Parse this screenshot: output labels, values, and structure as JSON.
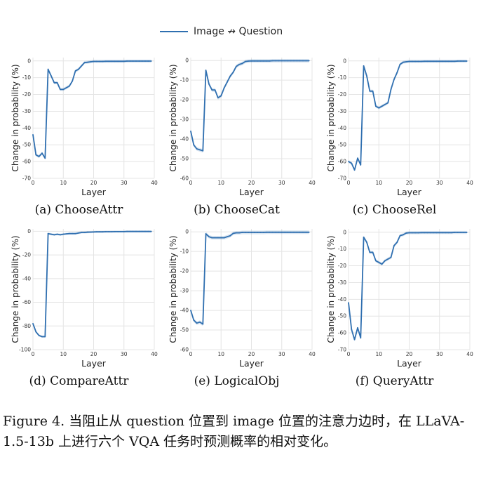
{
  "legend": {
    "label": "Image ↛ Question",
    "color": "#2f6fb0"
  },
  "figure_caption": "Figure 4. 当阻止从 question 位置到 image 位置的注意力边时，在 LLaVA-1.5-13b 上进行六个 VQA 任务时预测概率的相对变化。",
  "chart_data": [
    {
      "type": "line",
      "caption": "(a) ChooseAttr",
      "xlabel": "Layer",
      "ylabel": "Change in probability (%)",
      "xlim": [
        0,
        40
      ],
      "ylim": [
        -70,
        2
      ],
      "xticks": [
        0,
        10,
        20,
        30,
        40
      ],
      "yticks": [
        0,
        -10,
        -20,
        -30,
        -40,
        -50,
        -60,
        -70
      ],
      "grid": true,
      "series": [
        {
          "name": "Image ↛ Question",
          "x": [
            0,
            1,
            2,
            3,
            4,
            5,
            6,
            7,
            8,
            9,
            10,
            11,
            12,
            13,
            14,
            15,
            16,
            17,
            18,
            19,
            20,
            21,
            22,
            23,
            24,
            25,
            26,
            27,
            28,
            29,
            30,
            31,
            32,
            33,
            34,
            35,
            36,
            37,
            38,
            39
          ],
          "values": [
            -44,
            -56,
            -57,
            -55,
            -58,
            -5,
            -9,
            -13,
            -13,
            -17,
            -17,
            -16,
            -15,
            -12,
            -6,
            -5,
            -3,
            -1,
            -0.8,
            -0.5,
            -0.3,
            -0.3,
            -0.3,
            -0.3,
            -0.2,
            -0.2,
            -0.2,
            -0.2,
            -0.2,
            -0.2,
            -0.2,
            -0.1,
            -0.1,
            -0.1,
            -0.1,
            -0.1,
            -0.1,
            -0.1,
            -0.1,
            -0.1
          ]
        }
      ]
    },
    {
      "type": "line",
      "caption": "(b) ChooseCat",
      "xlabel": "Layer",
      "ylabel": "Change in probability (%)",
      "xlim": [
        0,
        40
      ],
      "ylim": [
        -60,
        1.5
      ],
      "xticks": [
        0,
        10,
        20,
        30,
        40
      ],
      "yticks": [
        0,
        -10,
        -20,
        -30,
        -40,
        -50,
        -60
      ],
      "grid": true,
      "series": [
        {
          "name": "Image ↛ Question",
          "x": [
            0,
            1,
            2,
            3,
            4,
            5,
            6,
            7,
            8,
            9,
            10,
            11,
            12,
            13,
            14,
            15,
            16,
            17,
            18,
            19,
            20,
            21,
            22,
            23,
            24,
            25,
            26,
            27,
            28,
            29,
            30,
            31,
            32,
            33,
            34,
            35,
            36,
            37,
            38,
            39
          ],
          "values": [
            -36,
            -43,
            -45,
            -45.5,
            -46,
            -5,
            -12,
            -15,
            -15,
            -19,
            -18,
            -14,
            -11,
            -8,
            -6,
            -3,
            -2,
            -1.5,
            -0.5,
            -0.3,
            -0.2,
            -0.2,
            -0.2,
            -0.2,
            -0.2,
            -0.2,
            -0.2,
            -0.1,
            -0.1,
            -0.1,
            -0.1,
            -0.1,
            -0.1,
            -0.1,
            -0.1,
            -0.1,
            -0.1,
            -0.1,
            -0.1,
            -0.1
          ]
        }
      ]
    },
    {
      "type": "line",
      "caption": "(c) ChooseRel",
      "xlabel": "Layer",
      "ylabel": "Change in probability (%)",
      "xlim": [
        0,
        40
      ],
      "ylim": [
        -70,
        2
      ],
      "xticks": [
        0,
        10,
        20,
        30,
        40
      ],
      "yticks": [
        0,
        -10,
        -20,
        -30,
        -40,
        -50,
        -60,
        -70
      ],
      "grid": true,
      "series": [
        {
          "name": "Image ↛ Question",
          "x": [
            0,
            1,
            2,
            3,
            4,
            5,
            6,
            7,
            8,
            9,
            10,
            11,
            12,
            13,
            14,
            15,
            16,
            17,
            18,
            19,
            20,
            21,
            22,
            23,
            24,
            25,
            26,
            27,
            28,
            29,
            30,
            31,
            32,
            33,
            34,
            35,
            36,
            37,
            38,
            39
          ],
          "values": [
            -60,
            -61,
            -65,
            -58,
            -62,
            -3,
            -9,
            -18,
            -18,
            -27,
            -28,
            -27,
            -26,
            -25,
            -17,
            -11,
            -7,
            -2,
            -0.8,
            -0.5,
            -0.3,
            -0.3,
            -0.3,
            -0.3,
            -0.3,
            -0.2,
            -0.2,
            -0.2,
            -0.2,
            -0.2,
            -0.2,
            -0.2,
            -0.2,
            -0.2,
            -0.2,
            -0.2,
            -0.1,
            -0.1,
            -0.1,
            -0.1
          ]
        }
      ]
    },
    {
      "type": "line",
      "caption": "(d) CompareAttr",
      "xlabel": "Layer",
      "ylabel": "Change in probability (%)",
      "xlim": [
        0,
        40
      ],
      "ylim": [
        -100,
        2
      ],
      "xticks": [
        0,
        10,
        20,
        30,
        40
      ],
      "yticks": [
        0,
        -20,
        -40,
        -60,
        -80,
        -100
      ],
      "grid": true,
      "series": [
        {
          "name": "Image ↛ Question",
          "x": [
            0,
            1,
            2,
            3,
            4,
            5,
            6,
            7,
            8,
            9,
            10,
            11,
            12,
            13,
            14,
            15,
            16,
            17,
            18,
            19,
            20,
            21,
            22,
            23,
            24,
            25,
            26,
            27,
            28,
            29,
            30,
            31,
            32,
            33,
            34,
            35,
            36,
            37,
            38,
            39
          ],
          "values": [
            -78,
            -85,
            -88,
            -89,
            -89,
            -2,
            -2.5,
            -3,
            -2.5,
            -3,
            -2.5,
            -2.2,
            -2,
            -2,
            -2,
            -1.5,
            -1,
            -1,
            -0.8,
            -0.7,
            -0.6,
            -0.5,
            -0.5,
            -0.5,
            -0.4,
            -0.4,
            -0.4,
            -0.3,
            -0.3,
            -0.3,
            -0.3,
            -0.2,
            -0.2,
            -0.2,
            -0.2,
            -0.2,
            -0.2,
            -0.2,
            -0.2,
            -0.2
          ]
        }
      ]
    },
    {
      "type": "line",
      "caption": "(e) LogicalObj",
      "xlabel": "Layer",
      "ylabel": "Change in probability (%)",
      "xlim": [
        0,
        40
      ],
      "ylim": [
        -60,
        1.5
      ],
      "xticks": [
        0,
        10,
        20,
        30,
        40
      ],
      "yticks": [
        0,
        -10,
        -20,
        -30,
        -40,
        -50,
        -60
      ],
      "grid": true,
      "series": [
        {
          "name": "Image ↛ Question",
          "x": [
            0,
            1,
            2,
            3,
            4,
            5,
            6,
            7,
            8,
            9,
            10,
            11,
            12,
            13,
            14,
            15,
            16,
            17,
            18,
            19,
            20,
            21,
            22,
            23,
            24,
            25,
            26,
            27,
            28,
            29,
            30,
            31,
            32,
            33,
            34,
            35,
            36,
            37,
            38,
            39
          ],
          "values": [
            -40,
            -45,
            -46.5,
            -46,
            -47,
            -1,
            -2.5,
            -3,
            -3,
            -3,
            -3,
            -3,
            -2.5,
            -2,
            -0.8,
            -0.5,
            -0.5,
            -0.3,
            -0.3,
            -0.3,
            -0.3,
            -0.3,
            -0.3,
            -0.3,
            -0.3,
            -0.2,
            -0.2,
            -0.2,
            -0.2,
            -0.2,
            -0.2,
            -0.2,
            -0.2,
            -0.2,
            -0.2,
            -0.2,
            -0.2,
            -0.2,
            -0.2,
            -0.2
          ]
        }
      ]
    },
    {
      "type": "line",
      "caption": "(f) QueryAttr",
      "xlabel": "Layer",
      "ylabel": "Change in probability (%)",
      "xlim": [
        0,
        40
      ],
      "ylim": [
        -70,
        2
      ],
      "xticks": [
        0,
        10,
        20,
        30,
        40
      ],
      "yticks": [
        0,
        -10,
        -20,
        -30,
        -40,
        -50,
        -60,
        -70
      ],
      "grid": true,
      "series": [
        {
          "name": "Image ↛ Question",
          "x": [
            0,
            1,
            2,
            3,
            4,
            5,
            6,
            7,
            8,
            9,
            10,
            11,
            12,
            13,
            14,
            15,
            16,
            17,
            18,
            19,
            20,
            21,
            22,
            23,
            24,
            25,
            26,
            27,
            28,
            29,
            30,
            31,
            32,
            33,
            34,
            35,
            36,
            37,
            38,
            39
          ],
          "values": [
            -42,
            -58,
            -64,
            -57,
            -63,
            -3,
            -6,
            -12,
            -12,
            -17,
            -18,
            -19,
            -17,
            -16,
            -15,
            -8,
            -6,
            -2,
            -1.5,
            -0.5,
            -0.3,
            -0.3,
            -0.3,
            -0.3,
            -0.2,
            -0.2,
            -0.2,
            -0.2,
            -0.2,
            -0.2,
            -0.2,
            -0.2,
            -0.2,
            -0.2,
            -0.2,
            -0.1,
            -0.1,
            -0.1,
            -0.1,
            -0.1
          ]
        }
      ]
    }
  ]
}
